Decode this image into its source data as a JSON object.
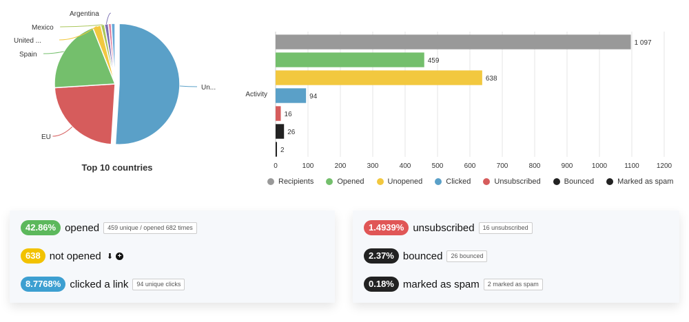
{
  "chart_data": [
    {
      "type": "pie",
      "title": "Top 10 countries",
      "slices": [
        {
          "label": "Un...",
          "value": 51,
          "color": "#5aa0c8"
        },
        {
          "label": "EU",
          "value": 23,
          "color": "#d65c5c"
        },
        {
          "label": "Spain",
          "value": 20,
          "color": "#74bf6c"
        },
        {
          "label": "United ...",
          "value": 2.2,
          "color": "#f2c83f"
        },
        {
          "label": "Mexico",
          "value": 1,
          "color": "#aac65a"
        },
        {
          "label": "Argentina",
          "value": 1,
          "color": "#7a6fb2"
        },
        {
          "label": "",
          "value": 0.8,
          "color": "#e07e9e"
        },
        {
          "label": "",
          "value": 1,
          "color": "#6aa9d8"
        }
      ]
    },
    {
      "type": "bar",
      "orientation": "horizontal",
      "category_label": "Activity",
      "xlim": [
        0,
        1200
      ],
      "xticks": [
        0,
        100,
        200,
        300,
        400,
        500,
        600,
        700,
        800,
        900,
        1000,
        1100,
        1200
      ],
      "grid": true,
      "legend_position": "bottom",
      "series": [
        {
          "name": "Recipients",
          "value": 1097,
          "label": "1 097",
          "color": "#999999"
        },
        {
          "name": "Opened",
          "value": 459,
          "label": "459",
          "color": "#74bf6c"
        },
        {
          "name": "Unopened",
          "value": 638,
          "label": "638",
          "color": "#f2c83f"
        },
        {
          "name": "Clicked",
          "value": 94,
          "label": "94",
          "color": "#5aa0c8"
        },
        {
          "name": "Unsubscribed",
          "value": 16,
          "label": "16",
          "color": "#d65c5c"
        },
        {
          "name": "Bounced",
          "value": 26,
          "label": "26",
          "color": "#222222"
        },
        {
          "name": "Marked as spam",
          "value": 2,
          "label": "2",
          "color": "#222222"
        }
      ]
    }
  ],
  "stats": {
    "opened": {
      "pct": "42.86%",
      "label": "opened",
      "hint": "459 unique / opened 682 times",
      "color": "#5cb85c"
    },
    "not_opened": {
      "count": "638",
      "label": "not opened",
      "color": "#f2c200",
      "icons": [
        "download-icon",
        "plus-circle-icon"
      ]
    },
    "clicked": {
      "pct": "8.7768%",
      "label": "clicked a link",
      "hint": "94 unique clicks",
      "color": "#3d9fd1"
    },
    "unsubscribed": {
      "pct": "1.4939%",
      "label": "unsubscribed",
      "hint": "16 unsubscribed",
      "color": "#e05656"
    },
    "bounced": {
      "pct": "2.37%",
      "label": "bounced",
      "hint": "26 bounced",
      "color": "#222222"
    },
    "spam": {
      "pct": "0.18%",
      "label": "marked as spam",
      "hint": "2 marked as spam",
      "color": "#222222"
    }
  }
}
